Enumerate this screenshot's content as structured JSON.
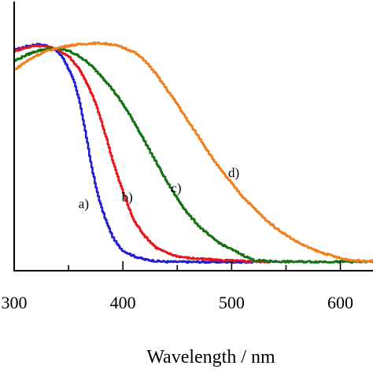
{
  "chart_data": {
    "type": "line",
    "title": "",
    "xlabel": "Wavelength / nm",
    "ylabel": "",
    "xlim": [
      300,
      630
    ],
    "ylim": [
      0,
      1.02
    ],
    "xticks": [
      300,
      400,
      500,
      600
    ],
    "xtick_labels": [
      "300",
      "400",
      "500",
      "600"
    ],
    "grid": false,
    "legend": "none",
    "series": [
      {
        "label": "a)",
        "color": "#1f1fd1",
        "label_at": [
          364,
          0.25
        ],
        "x": [
          300,
          310,
          320,
          330,
          340,
          345,
          350,
          355,
          360,
          365,
          370,
          375,
          380,
          385,
          390,
          395,
          400,
          410,
          420,
          430,
          440,
          460,
          480,
          500,
          520
        ],
        "y": [
          0.97,
          0.985,
          0.995,
          0.99,
          0.96,
          0.93,
          0.88,
          0.82,
          0.73,
          0.6,
          0.46,
          0.34,
          0.25,
          0.18,
          0.12,
          0.08,
          0.055,
          0.03,
          0.015,
          0.008,
          0.005,
          0.004,
          0.004,
          0.004,
          0.004
        ]
      },
      {
        "label": "b)",
        "color": "#e8141b",
        "label_at": [
          404,
          0.28
        ],
        "x": [
          300,
          310,
          320,
          330,
          340,
          350,
          360,
          370,
          375,
          380,
          385,
          390,
          395,
          400,
          405,
          410,
          420,
          430,
          440,
          450,
          460,
          480,
          500,
          520,
          540
        ],
        "y": [
          0.965,
          0.98,
          0.99,
          0.985,
          0.97,
          0.94,
          0.88,
          0.78,
          0.72,
          0.64,
          0.56,
          0.47,
          0.39,
          0.32,
          0.25,
          0.19,
          0.12,
          0.07,
          0.045,
          0.03,
          0.022,
          0.015,
          0.01,
          0.006,
          0.005
        ]
      },
      {
        "label": "c)",
        "color": "#127212",
        "label_at": [
          449,
          0.32
        ],
        "x": [
          300,
          310,
          320,
          330,
          340,
          350,
          360,
          370,
          380,
          390,
          400,
          410,
          420,
          430,
          440,
          450,
          460,
          470,
          480,
          490,
          500,
          510,
          520,
          540,
          560,
          600,
          630
        ],
        "y": [
          0.92,
          0.945,
          0.965,
          0.975,
          0.975,
          0.965,
          0.94,
          0.9,
          0.85,
          0.79,
          0.72,
          0.64,
          0.55,
          0.46,
          0.37,
          0.29,
          0.22,
          0.165,
          0.12,
          0.085,
          0.06,
          0.035,
          0.012,
          0.006,
          0.005,
          0.005,
          0.005
        ]
      },
      {
        "label": "d)",
        "color": "#f07f1e",
        "label_at": [
          502,
          0.39
        ],
        "x": [
          300,
          310,
          320,
          330,
          340,
          350,
          360,
          370,
          380,
          390,
          400,
          410,
          420,
          430,
          440,
          450,
          460,
          470,
          480,
          490,
          500,
          510,
          520,
          530,
          540,
          550,
          560,
          570,
          580,
          590,
          600,
          610,
          620,
          630
        ],
        "y": [
          0.88,
          0.915,
          0.945,
          0.965,
          0.98,
          0.99,
          0.995,
          1.0,
          1.0,
          0.995,
          0.98,
          0.96,
          0.92,
          0.86,
          0.79,
          0.72,
          0.64,
          0.57,
          0.49,
          0.42,
          0.36,
          0.3,
          0.25,
          0.2,
          0.16,
          0.125,
          0.095,
          0.07,
          0.05,
          0.035,
          0.02,
          0.012,
          0.008,
          0.008
        ]
      }
    ]
  }
}
